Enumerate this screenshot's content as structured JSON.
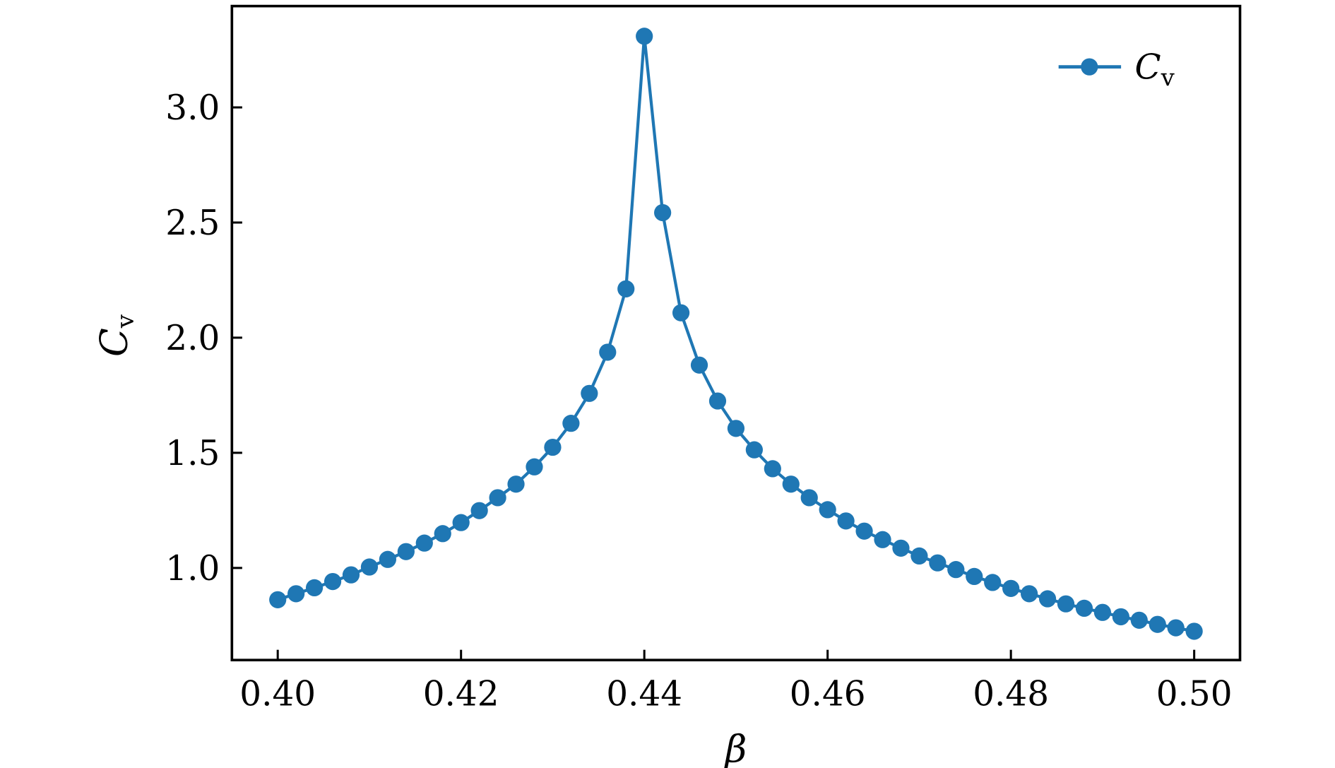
{
  "chart_data": {
    "type": "line",
    "title": "",
    "xlabel": "β",
    "ylabel": "C",
    "ylabel_sub": "v",
    "xlim": [
      0.395,
      0.505
    ],
    "ylim": [
      0.6,
      3.44
    ],
    "xticks": [
      0.4,
      0.42,
      0.44,
      0.46,
      0.48,
      0.5
    ],
    "xtick_labels": [
      "0.40",
      "0.42",
      "0.44",
      "0.46",
      "0.48",
      "0.50"
    ],
    "yticks": [
      1.0,
      1.5,
      2.0,
      2.5,
      3.0
    ],
    "ytick_labels": [
      "1.0",
      "1.5",
      "2.0",
      "2.5",
      "3.0"
    ],
    "grid": false,
    "legend_placement": "top-right",
    "series": [
      {
        "name": "C",
        "name_sub": "v",
        "color": "#1f77b4",
        "marker": "circle",
        "x": [
          0.4,
          0.402,
          0.404,
          0.406,
          0.408,
          0.41,
          0.412,
          0.414,
          0.416,
          0.418,
          0.42,
          0.422,
          0.424,
          0.426,
          0.428,
          0.43,
          0.432,
          0.434,
          0.436,
          0.438,
          0.44,
          0.442,
          0.444,
          0.446,
          0.448,
          0.45,
          0.452,
          0.454,
          0.456,
          0.458,
          0.46,
          0.462,
          0.464,
          0.466,
          0.468,
          0.47,
          0.472,
          0.474,
          0.476,
          0.478,
          0.48,
          0.482,
          0.484,
          0.486,
          0.488,
          0.49,
          0.492,
          0.494,
          0.496,
          0.498,
          0.5
        ],
        "y": [
          0.862,
          0.888,
          0.914,
          0.941,
          0.97,
          1.004,
          1.037,
          1.071,
          1.108,
          1.149,
          1.197,
          1.249,
          1.305,
          1.364,
          1.439,
          1.524,
          1.628,
          1.758,
          1.937,
          2.212,
          3.309,
          2.543,
          2.108,
          1.881,
          1.725,
          1.606,
          1.513,
          1.431,
          1.364,
          1.305,
          1.253,
          1.204,
          1.16,
          1.123,
          1.086,
          1.052,
          1.022,
          0.993,
          0.963,
          0.937,
          0.911,
          0.888,
          0.866,
          0.844,
          0.825,
          0.807,
          0.788,
          0.773,
          0.755,
          0.74,
          0.725
        ]
      }
    ]
  }
}
